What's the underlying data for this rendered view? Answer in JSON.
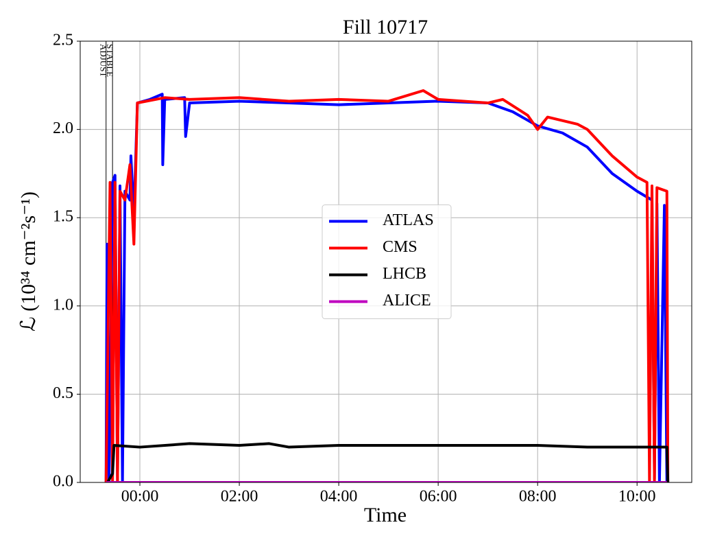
{
  "chart_data": {
    "type": "line",
    "title": "Fill 10717",
    "xlabel": "Time",
    "ylabel": "ℒ (10³⁴ cm⁻²s⁻¹)",
    "xlim": [
      -1.2,
      11.1
    ],
    "ylim": [
      0,
      2.5
    ],
    "xticks": [
      {
        "value": 0,
        "label": "00:00"
      },
      {
        "value": 2,
        "label": "02:00"
      },
      {
        "value": 4,
        "label": "04:00"
      },
      {
        "value": 6,
        "label": "06:00"
      },
      {
        "value": 8,
        "label": "08:00"
      },
      {
        "value": 10,
        "label": "10:00"
      }
    ],
    "yticks": [
      {
        "value": 0,
        "label": "0.0"
      },
      0.5,
      {
        "value": 1,
        "label": "1.0"
      },
      1.5,
      {
        "value": 2,
        "label": "2.0"
      },
      2.5
    ],
    "grid": true,
    "legend": "center",
    "annotations": [
      {
        "x": -0.68,
        "label": "ADJUST"
      },
      {
        "x": -0.55,
        "label": "STABLE"
      }
    ],
    "series": [
      {
        "name": "ATLAS",
        "color": "#0000ff",
        "x": [
          -0.68,
          -0.66,
          -0.62,
          -0.55,
          -0.5,
          -0.45,
          -0.4,
          -0.35,
          -0.3,
          -0.2,
          -0.18,
          -0.12,
          -0.05,
          0.2,
          0.45,
          0.46,
          0.5,
          0.9,
          0.92,
          1.0,
          2,
          3,
          4,
          5,
          6,
          7,
          7.5,
          8,
          8.5,
          9,
          9.5,
          10,
          10.3,
          10.35,
          10.4,
          10.45,
          10.55,
          10.6
        ],
        "values": [
          0,
          1.35,
          0,
          1.7,
          1.74,
          0,
          1.68,
          0,
          1.65,
          1.6,
          1.85,
          1.5,
          2.15,
          2.17,
          2.2,
          1.8,
          2.17,
          2.18,
          1.96,
          2.15,
          2.16,
          2.15,
          2.14,
          2.15,
          2.16,
          2.15,
          2.1,
          2.02,
          1.98,
          1.9,
          1.75,
          1.65,
          1.6,
          0.02,
          1.58,
          0,
          1.57,
          0
        ]
      },
      {
        "name": "CMS",
        "color": "#ff0000",
        "x": [
          -0.68,
          -0.6,
          -0.55,
          -0.5,
          -0.45,
          -0.4,
          -0.3,
          -0.2,
          -0.12,
          -0.05,
          0.5,
          1,
          2,
          3,
          4,
          5,
          5.7,
          6,
          7,
          7.3,
          7.8,
          8,
          8.2,
          8.8,
          9,
          9.5,
          10,
          10.2,
          10.25,
          10.3,
          10.35,
          10.4,
          10.6,
          10.62
        ],
        "values": [
          0,
          1.7,
          0,
          1.7,
          0,
          1.65,
          1.6,
          1.8,
          1.35,
          2.15,
          2.18,
          2.17,
          2.18,
          2.16,
          2.17,
          2.16,
          2.22,
          2.17,
          2.15,
          2.17,
          2.08,
          2.0,
          2.07,
          2.03,
          2.0,
          1.85,
          1.73,
          1.7,
          0,
          1.68,
          0,
          1.67,
          1.65,
          0
        ]
      },
      {
        "name": "LHCB",
        "color": "#000000",
        "x": [
          -0.65,
          -0.55,
          -0.52,
          0,
          1,
          2,
          2.6,
          3,
          4,
          5,
          6,
          7,
          8,
          9,
          10,
          10.6,
          10.62
        ],
        "values": [
          0,
          0.05,
          0.21,
          0.2,
          0.22,
          0.21,
          0.22,
          0.2,
          0.21,
          0.21,
          0.21,
          0.21,
          0.21,
          0.2,
          0.2,
          0.2,
          0
        ]
      },
      {
        "name": "ALICE",
        "color": "#bf00bf",
        "x": [
          -0.68,
          10.6
        ],
        "values": [
          0,
          0
        ]
      }
    ]
  }
}
